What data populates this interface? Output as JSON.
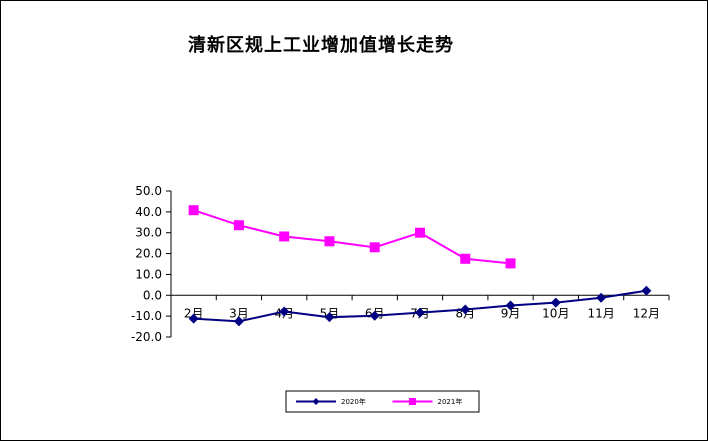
{
  "chart_data": {
    "type": "line",
    "title": "清新区规上工业增加值增长走势",
    "categories": [
      "2月",
      "3月",
      "4月",
      "5月",
      "6月",
      "7月",
      "8月",
      "9月",
      "10月",
      "11月",
      "12月"
    ],
    "y_ticks": [
      "50.0",
      "40.0",
      "30.0",
      "20.0",
      "10.0",
      "0.0",
      "-10.0",
      "-20.0"
    ],
    "ylim": [
      -20,
      50
    ],
    "grid": false,
    "legend_position": "bottom",
    "series": [
      {
        "name": "2020年",
        "color": "#000080",
        "marker": "diamond",
        "values": [
          -11.2,
          -12.5,
          -7.8,
          -10.5,
          -9.8,
          -8.3,
          -6.8,
          -4.9,
          -3.5,
          -1.2,
          2.2
        ]
      },
      {
        "name": "2021年",
        "color": "#ff00ff",
        "marker": "square",
        "values": [
          40.8,
          33.6,
          28.2,
          25.9,
          23.0,
          30.0,
          17.5,
          15.3,
          null,
          null,
          null
        ]
      }
    ]
  }
}
